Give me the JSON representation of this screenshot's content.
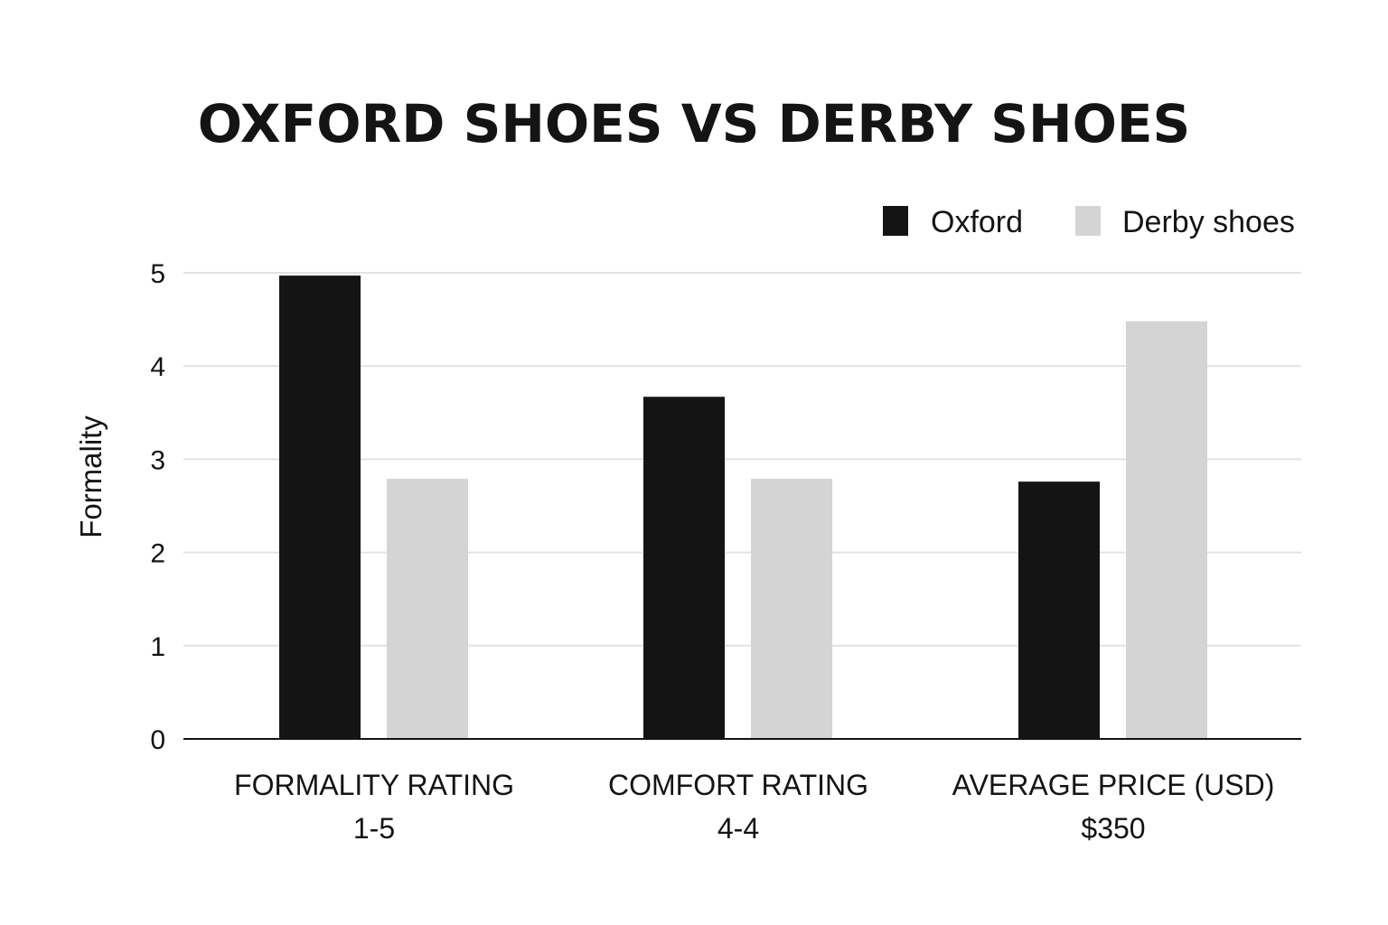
{
  "chart_data": {
    "type": "bar",
    "title": "OXFORD SHOES VS DERBY SHOES",
    "xlabel": "",
    "ylabel": "Formality",
    "ylim": [
      0,
      5
    ],
    "yticks": [
      0,
      1,
      2,
      3,
      4,
      5
    ],
    "grid": true,
    "legend_position": "top-right",
    "categories": [
      {
        "line1": "FORMALITY RATING",
        "line2": "1-5"
      },
      {
        "line1": "COMFORT RATING",
        "line2": "4-4"
      },
      {
        "line1": "AVERAGE PRICE (USD)",
        "line2": "$350"
      }
    ],
    "series": [
      {
        "name": "Oxford",
        "color": "#141414",
        "values": [
          4.97,
          3.67,
          2.76
        ]
      },
      {
        "name": "Derby shoes",
        "color": "#d4d4d4",
        "values": [
          2.79,
          2.79,
          4.48
        ]
      }
    ]
  }
}
